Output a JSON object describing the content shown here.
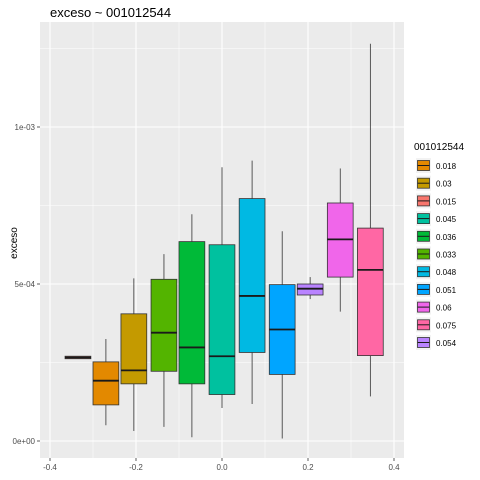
{
  "chart_data": {
    "type": "boxplot",
    "title": "exceso ~ 001012544",
    "xlabel": "",
    "ylabel": "exceso",
    "xlim": [
      -0.4,
      0.4
    ],
    "ylim": [
      0,
      0.00125
    ],
    "x_ticks": [
      {
        "value": -0.4,
        "label": "-0.4"
      },
      {
        "value": -0.2,
        "label": "-0.2"
      },
      {
        "value": 0.0,
        "label": "0.0"
      },
      {
        "value": 0.2,
        "label": "0.2"
      },
      {
        "value": 0.4,
        "label": "0.4"
      }
    ],
    "y_ticks": [
      {
        "value": 0,
        "label": "0e+00"
      },
      {
        "value": 0.0005,
        "label": "5e-04"
      },
      {
        "value": 0.001,
        "label": "1e-03"
      }
    ],
    "grid": true,
    "legend": {
      "title": "001012544",
      "position": "right",
      "entries": [
        {
          "label": "0.018",
          "color": "#E38900"
        },
        {
          "label": "0.03",
          "color": "#C49A00"
        },
        {
          "label": "0.015",
          "color": "#F8766D"
        },
        {
          "label": "0.045",
          "color": "#00C19F"
        },
        {
          "label": "0.036",
          "color": "#00BA38"
        },
        {
          "label": "0.033",
          "color": "#53B400"
        },
        {
          "label": "0.048",
          "color": "#00B9E3"
        },
        {
          "label": "0.051",
          "color": "#00A5FF"
        },
        {
          "label": "0.06",
          "color": "#F066EA"
        },
        {
          "label": "0.075",
          "color": "#FF67A4"
        },
        {
          "label": "0.054",
          "color": "#B983FF"
        }
      ]
    },
    "boxes": [
      {
        "group": "0.015",
        "color": "#F8766D",
        "x": -0.335,
        "min": 0.000262,
        "q1": 0.000262,
        "median": 0.000266,
        "q3": 0.00027,
        "max": 0.00027
      },
      {
        "group": "0.018",
        "color": "#E38900",
        "x": -0.27,
        "min": 5e-05,
        "q1": 0.000115,
        "median": 0.000192,
        "q3": 0.000252,
        "max": 0.000325
      },
      {
        "group": "0.03",
        "color": "#C49A00",
        "x": -0.205,
        "min": 3.2e-05,
        "q1": 0.000182,
        "median": 0.000225,
        "q3": 0.000405,
        "max": 0.000518
      },
      {
        "group": "0.033",
        "color": "#53B400",
        "x": -0.135,
        "min": 4.5e-05,
        "q1": 0.000222,
        "median": 0.000345,
        "q3": 0.000515,
        "max": 0.000595
      },
      {
        "group": "0.036",
        "color": "#00BA38",
        "x": -0.07,
        "min": 1.2e-05,
        "q1": 0.000182,
        "median": 0.000298,
        "q3": 0.000635,
        "max": 0.000722
      },
      {
        "group": "0.045",
        "color": "#00C19F",
        "x": 0.0,
        "min": 0.000105,
        "q1": 0.000148,
        "median": 0.00027,
        "q3": 0.000625,
        "max": 0.000872
      },
      {
        "group": "0.048",
        "color": "#00B9E3",
        "x": 0.07,
        "min": 0.000118,
        "q1": 0.000282,
        "median": 0.000462,
        "q3": 0.000772,
        "max": 0.000893
      },
      {
        "group": "0.051",
        "color": "#00A5FF",
        "x": 0.14,
        "min": 8e-06,
        "q1": 0.000212,
        "median": 0.000355,
        "q3": 0.000498,
        "max": 0.000668
      },
      {
        "group": "0.054",
        "color": "#B983FF",
        "x": 0.205,
        "min": 0.000452,
        "q1": 0.000465,
        "median": 0.000485,
        "q3": 0.0005,
        "max": 0.000522
      },
      {
        "group": "0.06",
        "color": "#F066EA",
        "x": 0.275,
        "min": 0.000412,
        "q1": 0.000522,
        "median": 0.000642,
        "q3": 0.000758,
        "max": 0.000868
      },
      {
        "group": "0.075",
        "color": "#FF67A4",
        "x": 0.345,
        "min": 0.000142,
        "q1": 0.000272,
        "median": 0.000545,
        "q3": 0.000678,
        "max": 0.001265
      }
    ]
  }
}
